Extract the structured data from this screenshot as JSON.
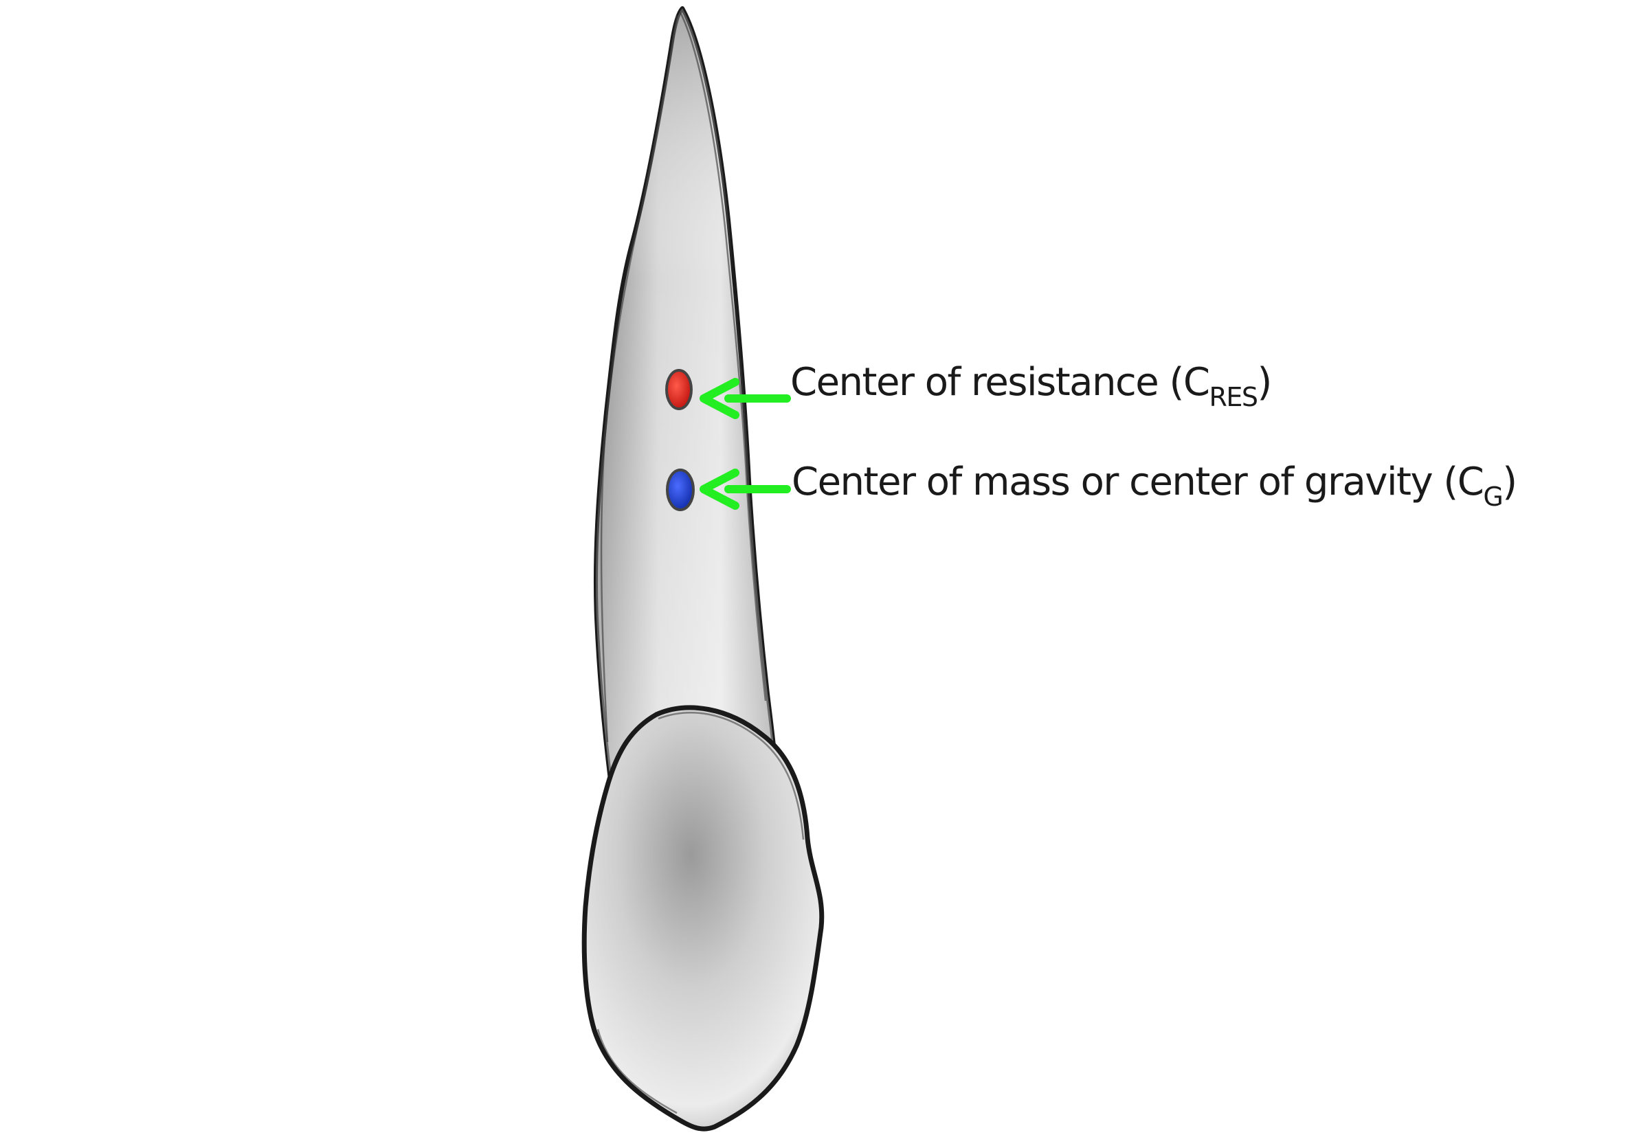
{
  "labels": {
    "resistance": {
      "text": "Center of resistance (C",
      "subscript": "RES",
      "suffix": ")"
    },
    "gravity": {
      "text": "Center of mass or center of gravity (C",
      "subscript": "G",
      "suffix": ")"
    }
  },
  "colors": {
    "resistance_point": "#d0201c",
    "gravity_point": "#1a3fc4",
    "arrow": "#22ee22",
    "outline": "#1a1a1a",
    "tooth_fill": "#d4d4d4"
  }
}
